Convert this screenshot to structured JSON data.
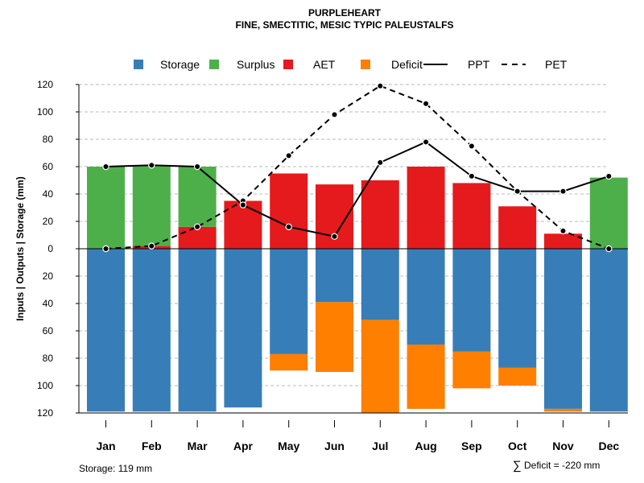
{
  "colors": {
    "storage": "#377EB8",
    "surplus": "#4DAF4A",
    "aet": "#E41A1C",
    "deficit": "#FF7F00",
    "line": "#000000",
    "grid": "#BBBBBB"
  },
  "chart_data": {
    "type": "bar",
    "title": "PURPLEHEART",
    "subtitle": "FINE, SMECTITIC, MESIC TYPIC PALEUSTALFS",
    "ylabel": "Inputs | Outputs | Storage    (mm)",
    "ylim": [
      -120,
      120
    ],
    "yticks": [
      120,
      100,
      80,
      60,
      40,
      20,
      0,
      -20,
      -40,
      -60,
      -80,
      -100,
      -120
    ],
    "ytick_labels": [
      "120",
      "100",
      "80",
      "60",
      "40",
      "20",
      "0",
      "20",
      "40",
      "60",
      "80",
      "100",
      "120"
    ],
    "grid": true,
    "legend_position": "top",
    "legend": [
      {
        "label": "Storage",
        "kind": "box",
        "color_key": "storage"
      },
      {
        "label": "Surplus",
        "kind": "box",
        "color_key": "surplus"
      },
      {
        "label": "AET",
        "kind": "box",
        "color_key": "aet"
      },
      {
        "label": "Deficit",
        "kind": "box",
        "color_key": "deficit"
      },
      {
        "label": "PPT",
        "kind": "solid"
      },
      {
        "label": "PET",
        "kind": "dashed"
      }
    ],
    "categories": [
      "Jan",
      "Feb",
      "Mar",
      "Apr",
      "May",
      "Jun",
      "Jul",
      "Aug",
      "Sep",
      "Oct",
      "Nov",
      "Dec"
    ],
    "series": [
      {
        "name": "AET",
        "values": [
          0,
          2,
          16,
          35,
          55,
          47,
          50,
          60,
          48,
          31,
          11,
          0
        ]
      },
      {
        "name": "Surplus",
        "values": [
          60,
          59,
          44,
          0,
          0,
          0,
          0,
          0,
          0,
          0,
          0,
          52
        ]
      },
      {
        "name": "Storage",
        "values": [
          119,
          119,
          119,
          116,
          77,
          39,
          52,
          70,
          75,
          87,
          117,
          119
        ]
      },
      {
        "name": "Deficit",
        "values": [
          0,
          0,
          0,
          0,
          12,
          51,
          68,
          47,
          27,
          13,
          2,
          0
        ]
      },
      {
        "name": "PPT",
        "values": [
          60,
          61,
          60,
          32,
          16,
          9,
          63,
          78,
          53,
          42,
          42,
          53
        ]
      },
      {
        "name": "PET",
        "values": [
          0,
          2,
          16,
          35,
          68,
          98,
          119,
          106,
          75,
          42,
          13,
          0
        ]
      }
    ],
    "footnote_left": "Storage: 119 mm",
    "footnote_right_symbol": "∑",
    "footnote_right": "Deficit = -220 mm"
  }
}
